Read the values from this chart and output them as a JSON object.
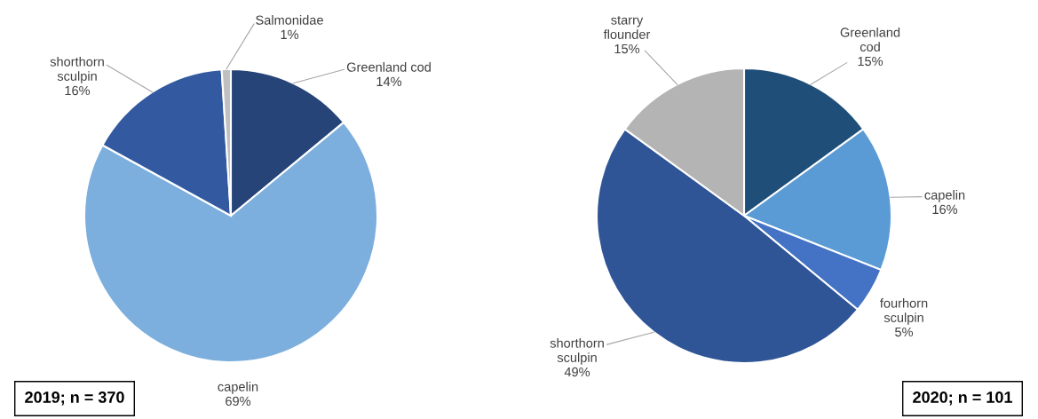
{
  "chart_data": [
    {
      "type": "pie",
      "title": "2019; n = 370",
      "categories": [
        "Greenland cod",
        "capelin",
        "shorthorn sculpin",
        "Salmonidae"
      ],
      "values": [
        14,
        69,
        16,
        1
      ],
      "colors": [
        "#264478",
        "#7cafdd",
        "#335aa1",
        "#c0c0c0"
      ],
      "value_labels": [
        "14%",
        "69%",
        "16%",
        "1%"
      ]
    },
    {
      "type": "pie",
      "title": "2020; n = 101",
      "categories": [
        "Greenland cod",
        "capelin",
        "fourhorn sculpin",
        "shorthorn sculpin",
        "starry flounder"
      ],
      "values": [
        15,
        16,
        5,
        49,
        15
      ],
      "colors": [
        "#1f4e79",
        "#5b9bd5",
        "#4472c4",
        "#2f5597",
        "#b4b4b4"
      ],
      "value_labels": [
        "15%",
        "16%",
        "5%",
        "49%",
        "15%"
      ]
    }
  ]
}
